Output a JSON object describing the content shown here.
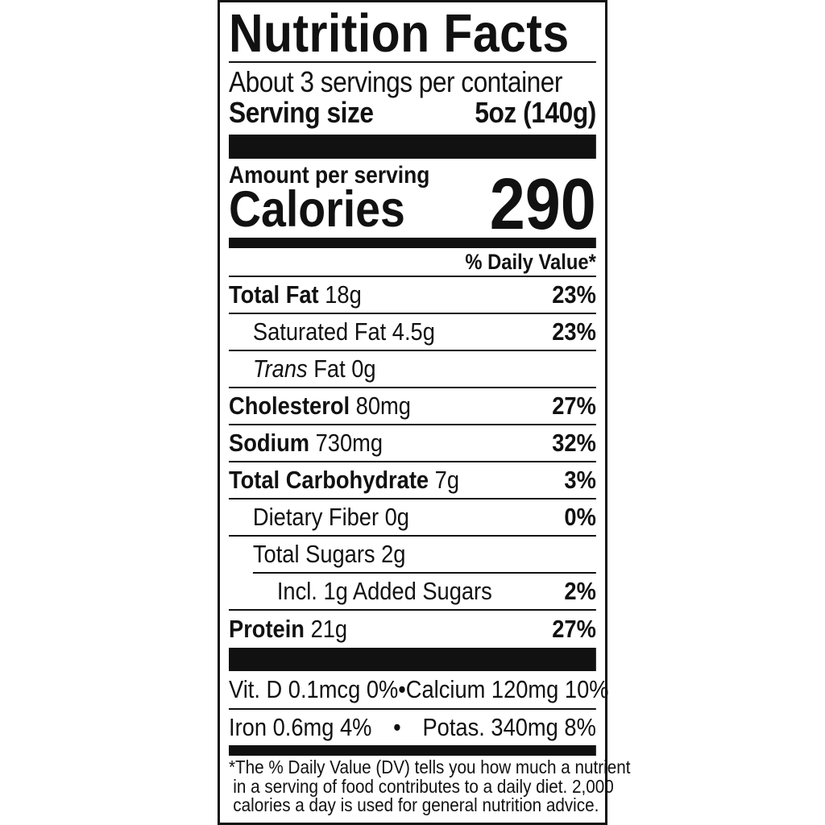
{
  "title": "Nutrition Facts",
  "servings_per_container": "About 3 servings per container",
  "serving_size_label": "Serving size",
  "serving_size_value": "5oz (140g)",
  "amount_per_serving": "Amount per serving",
  "calories_label": "Calories",
  "calories_value": "290",
  "dv_header": "% Daily Value*",
  "nutrients": [
    {
      "name": "Total Fat",
      "amount": "18g",
      "dv": "23%"
    },
    {
      "name": "Saturated Fat 4.5g",
      "dv": "23%"
    },
    {
      "name_italic": "Trans",
      "name": "Fat 0g",
      "dv": ""
    },
    {
      "name": "Cholesterol",
      "amount": "80mg",
      "dv": "27%"
    },
    {
      "name": "Sodium",
      "amount": "730mg",
      "dv": "32%"
    },
    {
      "name": "Total Carbohydrate",
      "amount": "7g",
      "dv": "3%"
    },
    {
      "name": "Dietary Fiber 0g",
      "dv": "0%"
    },
    {
      "name": "Total Sugars 2g",
      "dv": ""
    },
    {
      "name": "Incl. 1g Added Sugars",
      "dv": "2%"
    },
    {
      "name": "Protein",
      "amount": "21g",
      "dv": "27%"
    }
  ],
  "vitamins": [
    {
      "left": "Vit. D 0.1mcg 0%",
      "sep": "•",
      "right": "Calcium 120mg 10%"
    },
    {
      "left": "Iron 0.6mg 4%",
      "sep": "•",
      "right": "Potas. 340mg 8%"
    }
  ],
  "footnote": {
    "line1": "*The % Daily Value (DV) tells you how much a nutrient",
    "line2": "in a serving of food contributes to a daily diet. 2,000",
    "line3": "calories a day is used for general nutrition advice."
  },
  "colors": {
    "ink": "#111111",
    "background": "#ffffff"
  }
}
